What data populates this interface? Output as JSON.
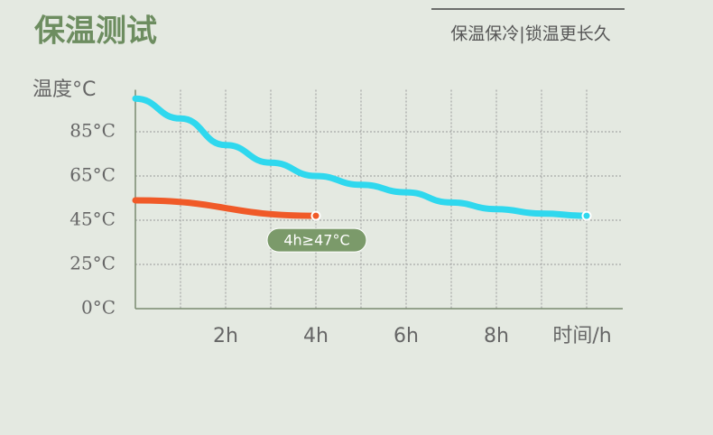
{
  "title": "保温测试",
  "subtitle": "保温保冷|锁温更长久",
  "chart_data": {
    "type": "line",
    "y_label": "温度°C",
    "x_label": "时间/h",
    "x": [
      0,
      1,
      2,
      3,
      4,
      5,
      6,
      7,
      8,
      9,
      10
    ],
    "series": [
      {
        "color": "#2fd8ee",
        "x": [
          0,
          1,
          2,
          3,
          4,
          5,
          6,
          7,
          8,
          9,
          10
        ],
        "values": [
          100,
          91,
          79,
          71,
          65,
          61,
          57.6,
          53,
          50,
          48,
          47
        ]
      },
      {
        "color": "#f05a28",
        "x": [
          0,
          4
        ],
        "values": [
          54,
          47
        ]
      }
    ],
    "annotation": "4h≥47°C",
    "xlim": [
      0,
      10.8
    ],
    "xticks": [
      {
        "value": 2,
        "label": "2h"
      },
      {
        "value": 4,
        "label": "4h"
      },
      {
        "value": 6,
        "label": "6h"
      },
      {
        "value": 8,
        "label": "8h"
      }
    ],
    "ylim": [
      0,
      104
    ],
    "yticks": [
      {
        "value": 0,
        "label": "0°C"
      },
      {
        "value": 25,
        "label": "25°C"
      },
      {
        "value": 45,
        "label": "45°C"
      },
      {
        "value": 65,
        "label": "65°C"
      },
      {
        "value": 85,
        "label": "85°C"
      }
    ],
    "grid": true
  }
}
